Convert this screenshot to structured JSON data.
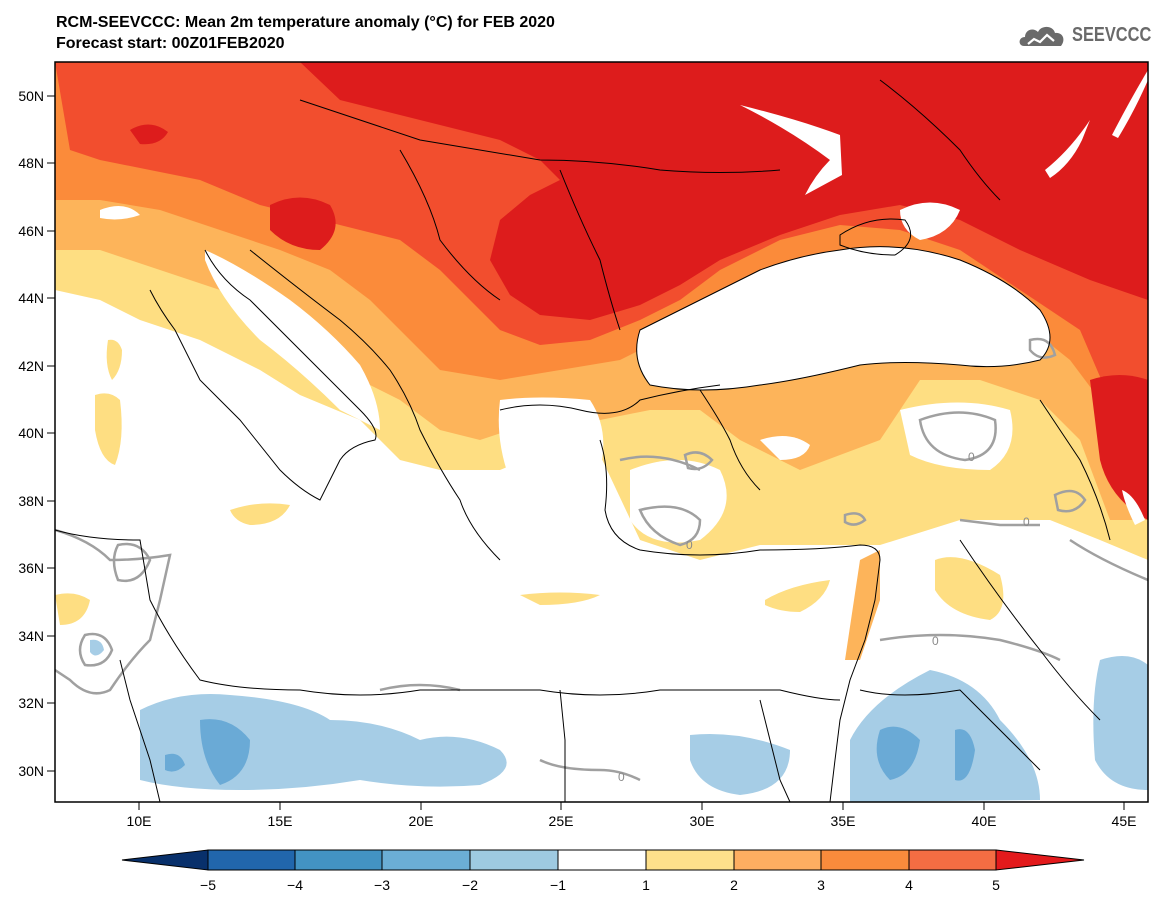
{
  "header": {
    "title_line1": "RCM-SEEVCCC: Mean 2m temperature anomaly (°C) for FEB 2020",
    "title_line2": "Forecast start: 00Z01FEB2020"
  },
  "logo": {
    "text": "SEEVCCC",
    "icon": "cloud-icon"
  },
  "map": {
    "lat_ticks": [
      "50N",
      "48N",
      "46N",
      "44N",
      "42N",
      "40N",
      "38N",
      "36N",
      "34N",
      "32N",
      "30N"
    ],
    "lon_ticks": [
      "10E",
      "15E",
      "20E",
      "25E",
      "30E",
      "35E",
      "40E",
      "45E"
    ],
    "contour_labels": [
      "0",
      "0",
      "0",
      "0",
      "0"
    ]
  },
  "colorbar": {
    "labels": [
      "−5",
      "−4",
      "−3",
      "−2",
      "−1",
      "1",
      "2",
      "3",
      "4",
      "5"
    ],
    "colors": [
      "#08306b",
      "#2166ac",
      "#4393c3",
      "#6baed6",
      "#9ecae1",
      "#ffffff",
      "#fee08b",
      "#fdae61",
      "#f98b3c",
      "#f46d43",
      "#e31a1c"
    ]
  },
  "palette": {
    "red_dark": "#dd1c1c",
    "red": "#f24e2e",
    "orange": "#fb8b3a",
    "orange_light": "#fdb45a",
    "yellow": "#fede82",
    "white": "#ffffff",
    "blue_light": "#a6cde6",
    "blue": "#6aaad6",
    "contour_gray": "#a0a0a0"
  }
}
